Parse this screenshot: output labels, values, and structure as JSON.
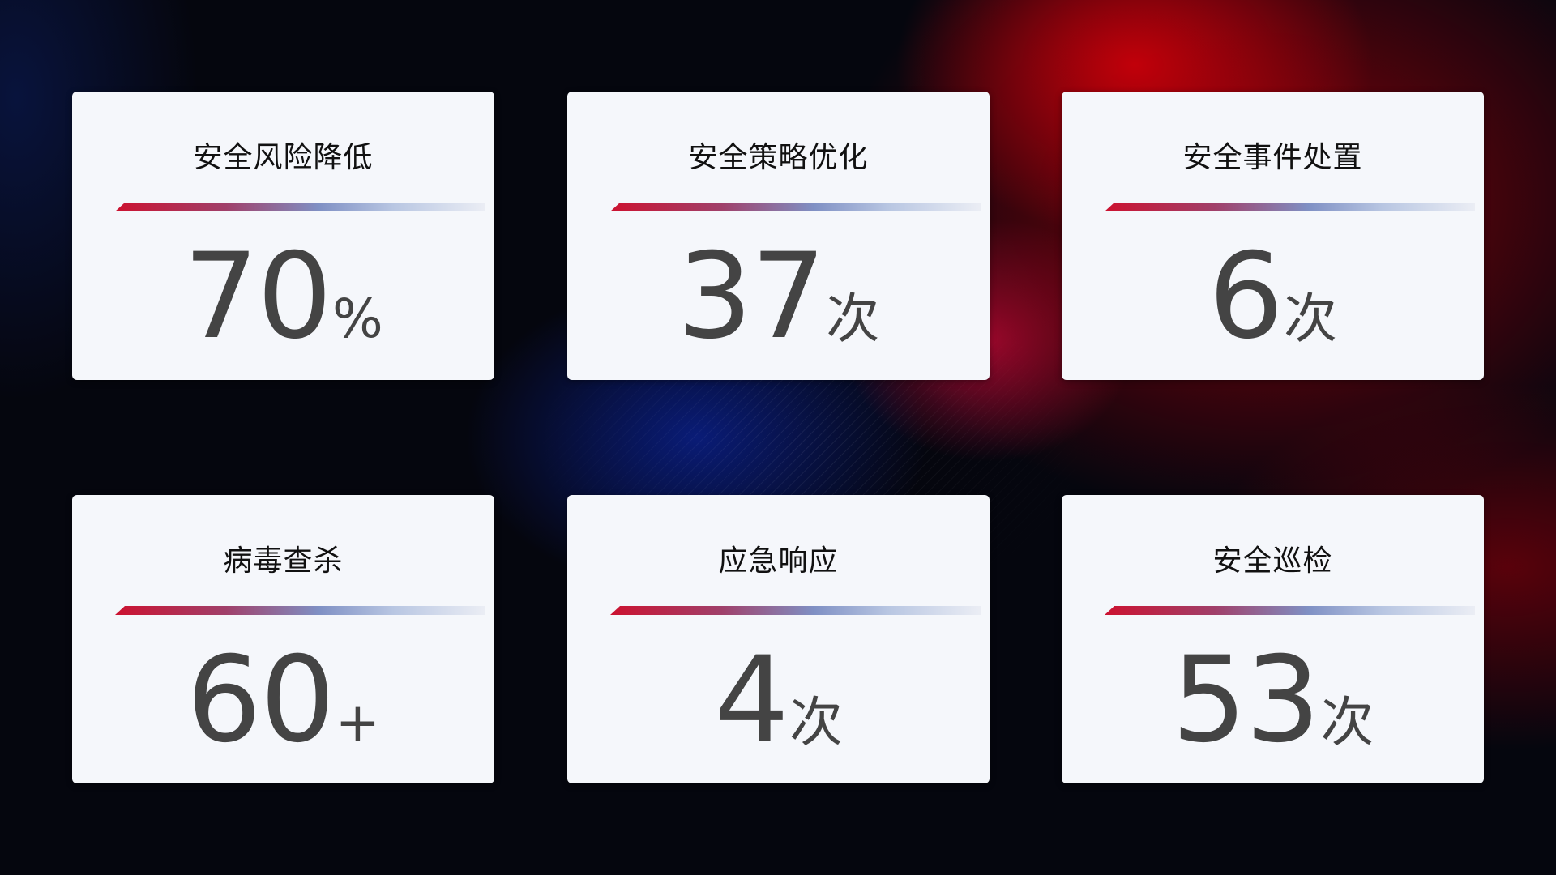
{
  "cards": [
    {
      "title": "安全风险降低",
      "value": "70",
      "unit": "%"
    },
    {
      "title": "安全策略优化",
      "value": "37",
      "unit": "次"
    },
    {
      "title": "安全事件处置",
      "value": "6",
      "unit": "次"
    },
    {
      "title": "病毒查杀",
      "value": "60",
      "unit": "+"
    },
    {
      "title": "应急响应",
      "value": "4",
      "unit": "次"
    },
    {
      "title": "安全巡检",
      "value": "53",
      "unit": "次"
    }
  ],
  "colors": {
    "accent_red": "#cc1230",
    "accent_blue": "#7f90c4",
    "card_bg": "#f5f7fb",
    "value_text": "#444444"
  }
}
